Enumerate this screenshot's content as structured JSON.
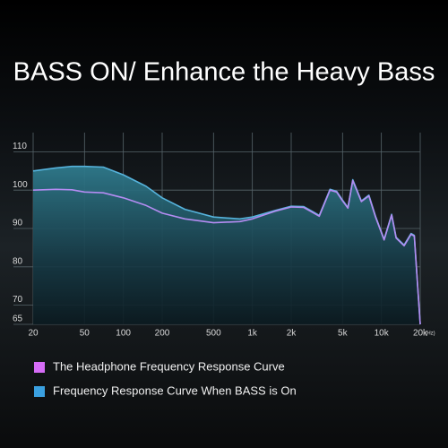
{
  "chart_data": {
    "type": "line",
    "title": "BASS ON/ Enhance the Heavy Bass",
    "x_label": "(Hz)",
    "log_x": true,
    "grid": true,
    "xlim": [
      20,
      20000
    ],
    "xticks": [
      20,
      50,
      100,
      200,
      500,
      {
        "value": 1000,
        "label": "1k"
      },
      {
        "value": 2000,
        "label": "2k"
      },
      {
        "value": 5000,
        "label": "5k"
      },
      {
        "value": 10000,
        "label": "10k"
      },
      {
        "value": 20000,
        "label": "20k"
      }
    ],
    "ylim": [
      65,
      115
    ],
    "yticks": [
      65,
      70,
      80,
      90,
      100,
      110
    ],
    "x": [
      20,
      30,
      40,
      50,
      70,
      100,
      150,
      200,
      300,
      500,
      800,
      1000,
      1500,
      2000,
      2500,
      3000,
      3300,
      4000,
      4500,
      5000,
      5500,
      6000,
      7000,
      8000,
      9000,
      10500,
      12000,
      13000,
      15000,
      17000,
      18000,
      20000
    ],
    "series": [
      {
        "name": "The Headphone Frequency Response Curve",
        "color": "#b48cf2",
        "legend_color": "#d56cf6",
        "values": [
          100,
          100.2,
          100.1,
          99.5,
          99.3,
          98,
          96,
          94,
          92.5,
          91.5,
          91.8,
          92.5,
          94.5,
          95.6,
          95.5,
          94,
          93.2,
          100,
          99.5,
          97.2,
          95.3,
          102.5,
          97,
          98.5,
          93,
          87,
          93.5,
          87.5,
          85.5,
          88.5,
          88,
          65
        ]
      },
      {
        "name": "Frequency Response Curve When BASS is On",
        "color": "#56b3dc",
        "legend_color": "#3aa0e0",
        "values": [
          105,
          105.8,
          106.2,
          106.2,
          106,
          104,
          101,
          98,
          95,
          93,
          92.5,
          93,
          94.7,
          95.8,
          95.7,
          94.2,
          93.4,
          100.2,
          99.7,
          97.4,
          95.5,
          102.7,
          97.2,
          98.7,
          93.2,
          87.2,
          93.7,
          87.7,
          85.7,
          88.7,
          88.2,
          65
        ]
      }
    ]
  }
}
